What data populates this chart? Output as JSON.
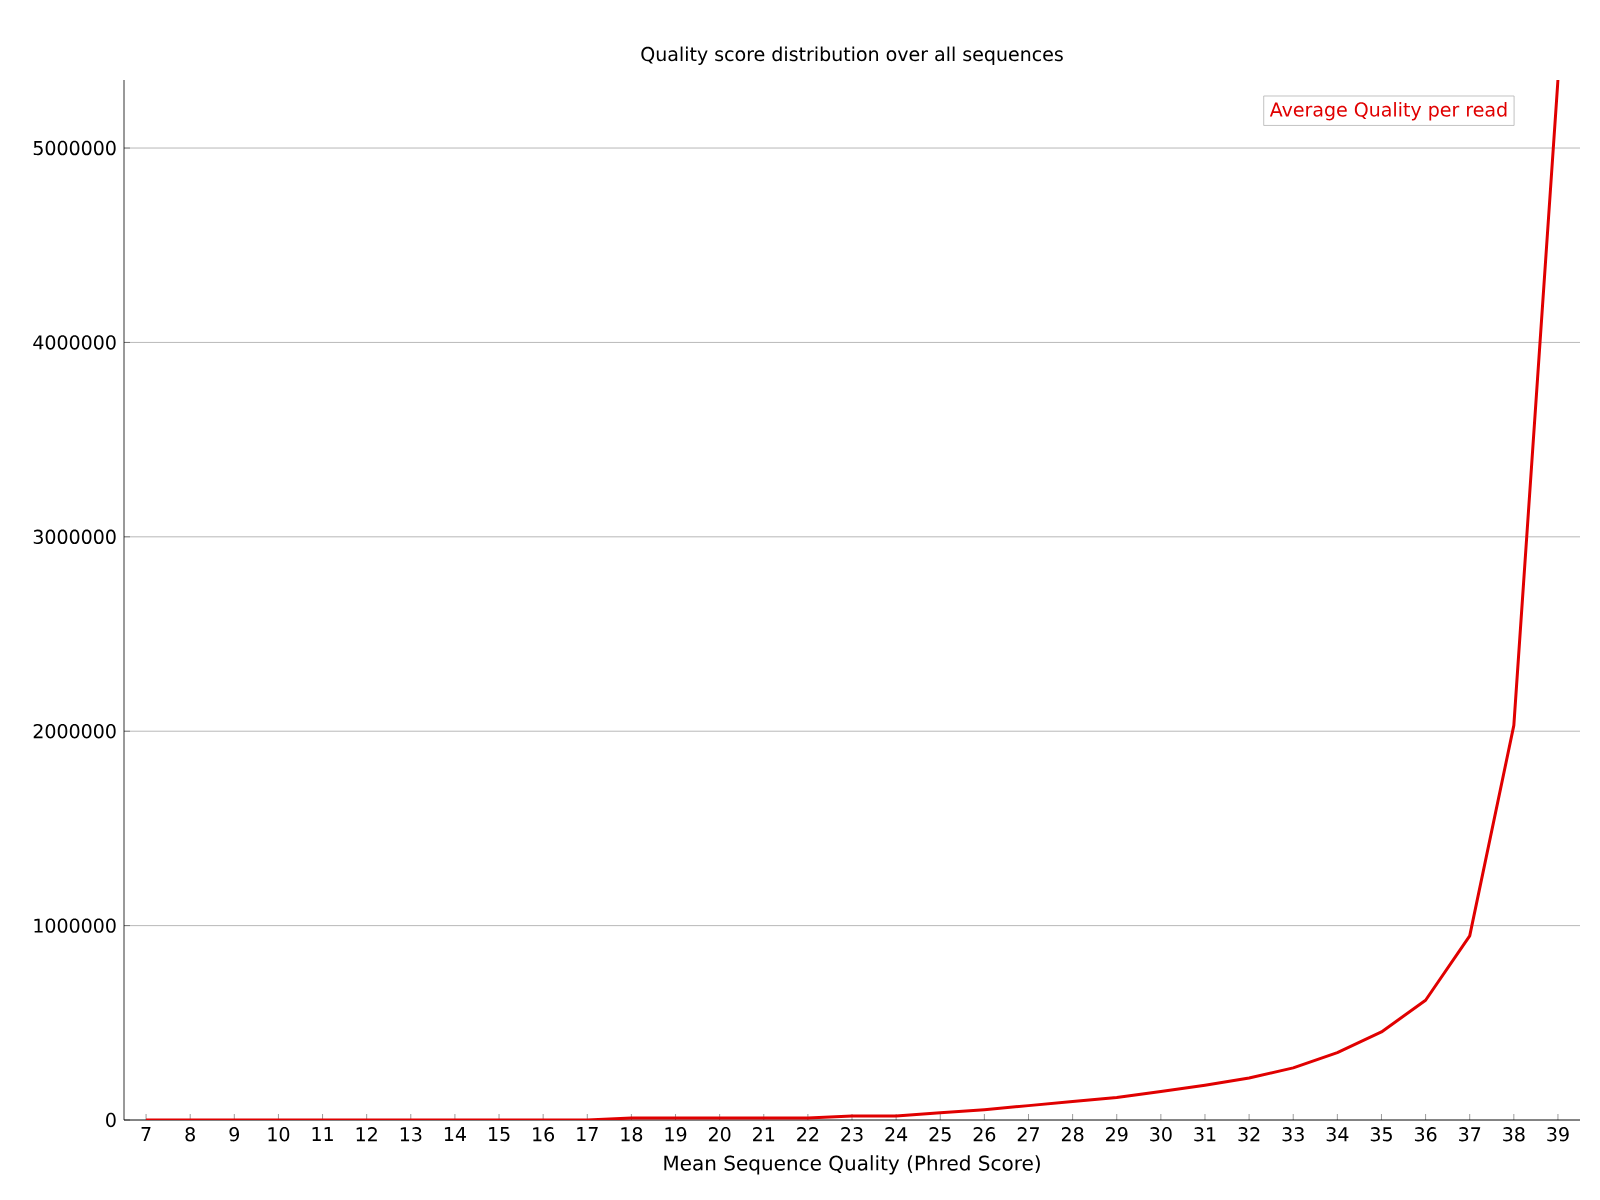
{
  "chart_data": {
    "type": "line",
    "title": "Quality score distribution over all sequences",
    "xlabel": "Mean Sequence Quality (Phred Score)",
    "categories": [
      "7",
      "8",
      "9",
      "10",
      "11",
      "12",
      "13",
      "14",
      "15",
      "16",
      "17",
      "18",
      "19",
      "20",
      "21",
      "22",
      "23",
      "24",
      "25",
      "26",
      "27",
      "28",
      "29",
      "30",
      "31",
      "32",
      "33",
      "34",
      "35",
      "36",
      "37",
      "38",
      "39"
    ],
    "series": [
      {
        "name": "Average Quality per read",
        "color": "#e00000",
        "values": [
          0,
          0,
          0,
          0,
          0,
          0,
          0,
          0,
          0,
          0,
          0,
          10000,
          10000,
          10000,
          10000,
          10000,
          20000,
          20000,
          37000,
          53000,
          74000,
          95000,
          116000,
          147000,
          179000,
          216000,
          268000,
          347000,
          453000,
          616000,
          947000,
          2030000,
          5350000
        ]
      }
    ],
    "ylim": [
      0,
      5350000
    ],
    "yticks": [
      0,
      1000000,
      2000000,
      3000000,
      4000000,
      5000000
    ],
    "grid": "y",
    "legend": "top right",
    "line_style": "solid",
    "marker": "none"
  }
}
